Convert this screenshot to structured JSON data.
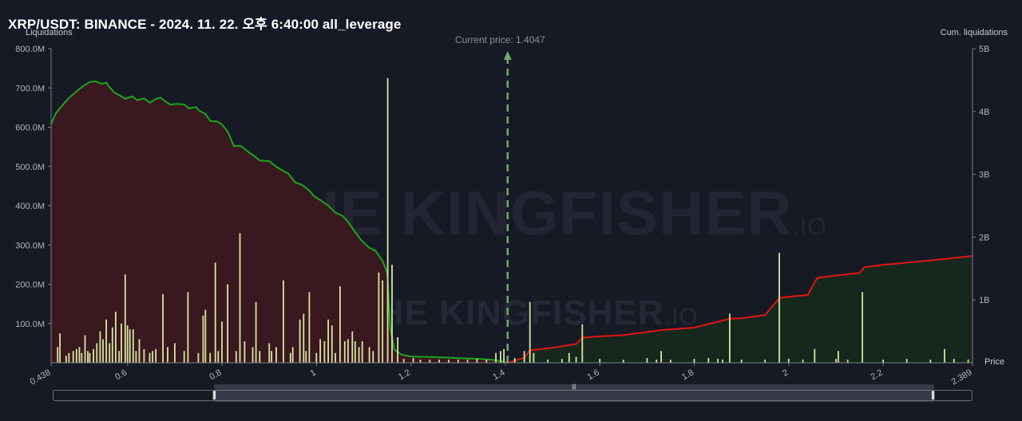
{
  "header": {
    "title": "XRP/USDT: BINANCE - 2024. 11. 22. 오후 6:40:00 all_leverage",
    "left_axis_title": "Liquidations",
    "right_axis_title": "Cum. liquidations",
    "price_axis_title": "Price",
    "current_price_label": "Current price: 1.4047"
  },
  "watermark": {
    "text": "THE KINGFISHER",
    "suffix": ".IO"
  },
  "colors": {
    "background": "#161a25",
    "bar": "#d6e6a0",
    "long_cum_line": "#1aa61a",
    "long_cum_fill": "#3a1820",
    "short_cum_line": "#e01515",
    "short_cum_fill": "#16281e",
    "current_price_line": "#6fa86f"
  },
  "scrollbar": {
    "grip_symbol": "|||"
  },
  "chart_data": {
    "type": "bar",
    "title": "XRP/USDT: BINANCE - 2024. 11. 22. 오후 6:40:00 all_leverage",
    "xlabel": "Price",
    "ylabel": "Liquidations",
    "y2label": "Cum. liquidations",
    "xlim": [
      0.438,
      2.389
    ],
    "ylim": [
      0,
      800000000
    ],
    "y2lim": [
      0,
      5000000000
    ],
    "x_ticks": [
      {
        "v": 0.438,
        "label": "0.438"
      },
      {
        "v": 0.6,
        "label": "0.6"
      },
      {
        "v": 0.8,
        "label": "0.8"
      },
      {
        "v": 1.0,
        "label": "1"
      },
      {
        "v": 1.2,
        "label": "1.2"
      },
      {
        "v": 1.4,
        "label": "1.4"
      },
      {
        "v": 1.6,
        "label": "1.6"
      },
      {
        "v": 1.8,
        "label": "1.8"
      },
      {
        "v": 2.0,
        "label": "2"
      },
      {
        "v": 2.2,
        "label": "2.2"
      },
      {
        "v": 2.389,
        "label": "2.389"
      }
    ],
    "y_ticks": [
      {
        "v": 100000000,
        "label": "100.0M"
      },
      {
        "v": 200000000,
        "label": "200.0M"
      },
      {
        "v": 300000000,
        "label": "300.0M"
      },
      {
        "v": 400000000,
        "label": "400.0M"
      },
      {
        "v": 500000000,
        "label": "500.0M"
      },
      {
        "v": 600000000,
        "label": "600.0M"
      },
      {
        "v": 700000000,
        "label": "700.0M"
      },
      {
        "v": 800000000,
        "label": "800.0M"
      }
    ],
    "y2_ticks": [
      {
        "v": 1000000000,
        "label": "1B"
      },
      {
        "v": 2000000000,
        "label": "2B"
      },
      {
        "v": 3000000000,
        "label": "3B"
      },
      {
        "v": 4000000000,
        "label": "4B"
      },
      {
        "v": 5000000000,
        "label": "5B"
      }
    ],
    "current_price": 1.4047,
    "bars": [
      [
        0.452,
        40
      ],
      [
        0.457,
        75
      ],
      [
        0.47,
        18
      ],
      [
        0.476,
        25
      ],
      [
        0.485,
        30
      ],
      [
        0.492,
        35
      ],
      [
        0.498,
        40
      ],
      [
        0.503,
        25
      ],
      [
        0.51,
        70
      ],
      [
        0.516,
        30
      ],
      [
        0.52,
        25
      ],
      [
        0.528,
        35
      ],
      [
        0.535,
        50
      ],
      [
        0.542,
        80
      ],
      [
        0.548,
        60
      ],
      [
        0.555,
        110
      ],
      [
        0.562,
        50
      ],
      [
        0.568,
        90
      ],
      [
        0.575,
        130
      ],
      [
        0.582,
        30
      ],
      [
        0.587,
        100
      ],
      [
        0.595,
        225
      ],
      [
        0.6,
        95
      ],
      [
        0.605,
        85
      ],
      [
        0.612,
        85
      ],
      [
        0.618,
        30
      ],
      [
        0.625,
        60
      ],
      [
        0.635,
        35
      ],
      [
        0.647,
        25
      ],
      [
        0.653,
        30
      ],
      [
        0.66,
        35
      ],
      [
        0.675,
        175
      ],
      [
        0.685,
        40
      ],
      [
        0.7,
        50
      ],
      [
        0.72,
        30
      ],
      [
        0.728,
        180
      ],
      [
        0.75,
        25
      ],
      [
        0.76,
        120
      ],
      [
        0.765,
        135
      ],
      [
        0.775,
        25
      ],
      [
        0.786,
        255
      ],
      [
        0.792,
        30
      ],
      [
        0.8,
        105
      ],
      [
        0.812,
        200
      ],
      [
        0.83,
        30
      ],
      [
        0.838,
        330
      ],
      [
        0.848,
        55
      ],
      [
        0.865,
        40
      ],
      [
        0.872,
        155
      ],
      [
        0.88,
        30
      ],
      [
        0.9,
        50
      ],
      [
        0.905,
        30
      ],
      [
        0.915,
        40
      ],
      [
        0.93,
        210
      ],
      [
        0.945,
        25
      ],
      [
        0.95,
        40
      ],
      [
        0.965,
        110
      ],
      [
        0.973,
        125
      ],
      [
        0.978,
        30
      ],
      [
        0.985,
        180
      ],
      [
        1.0,
        25
      ],
      [
        1.008,
        60
      ],
      [
        1.017,
        55
      ],
      [
        1.025,
        110
      ],
      [
        1.033,
        95
      ],
      [
        1.04,
        25
      ],
      [
        1.05,
        195
      ],
      [
        1.06,
        55
      ],
      [
        1.067,
        60
      ],
      [
        1.076,
        80
      ],
      [
        1.082,
        55
      ],
      [
        1.09,
        40
      ],
      [
        1.097,
        55
      ],
      [
        1.112,
        40
      ],
      [
        1.12,
        30
      ],
      [
        1.132,
        230
      ],
      [
        1.14,
        210
      ],
      [
        1.151,
        725
      ],
      [
        1.16,
        250
      ],
      [
        1.172,
        65
      ],
      [
        1.185,
        10
      ],
      [
        1.205,
        12
      ],
      [
        1.22,
        8
      ],
      [
        1.24,
        8
      ],
      [
        1.26,
        8
      ],
      [
        1.28,
        8
      ],
      [
        1.3,
        8
      ],
      [
        1.32,
        8
      ],
      [
        1.34,
        10
      ],
      [
        1.36,
        8
      ],
      [
        1.38,
        25
      ],
      [
        1.39,
        30
      ],
      [
        1.397,
        35
      ],
      [
        1.42,
        12
      ],
      [
        1.44,
        30
      ],
      [
        1.452,
        155
      ],
      [
        1.46,
        25
      ],
      [
        1.49,
        8
      ],
      [
        1.52,
        10
      ],
      [
        1.535,
        25
      ],
      [
        1.55,
        15
      ],
      [
        1.563,
        98
      ],
      [
        1.6,
        10
      ],
      [
        1.65,
        8
      ],
      [
        1.7,
        12
      ],
      [
        1.72,
        8
      ],
      [
        1.73,
        30
      ],
      [
        1.75,
        8
      ],
      [
        1.8,
        10
      ],
      [
        1.83,
        12
      ],
      [
        1.85,
        10
      ],
      [
        1.86,
        8
      ],
      [
        1.875,
        125
      ],
      [
        1.9,
        8
      ],
      [
        1.95,
        8
      ],
      [
        1.98,
        280
      ],
      [
        2.0,
        10
      ],
      [
        2.03,
        8
      ],
      [
        2.055,
        35
      ],
      [
        2.1,
        10
      ],
      [
        2.105,
        30
      ],
      [
        2.125,
        8
      ],
      [
        2.156,
        180
      ],
      [
        2.2,
        8
      ],
      [
        2.25,
        10
      ],
      [
        2.3,
        8
      ],
      [
        2.33,
        35
      ],
      [
        2.35,
        10
      ],
      [
        2.38,
        8
      ]
    ],
    "long_cumulative": [
      [
        0.438,
        3800
      ],
      [
        0.448,
        3970
      ],
      [
        0.46,
        4080
      ],
      [
        0.475,
        4210
      ],
      [
        0.49,
        4310
      ],
      [
        0.505,
        4400
      ],
      [
        0.52,
        4470
      ],
      [
        0.532,
        4480
      ],
      [
        0.545,
        4440
      ],
      [
        0.555,
        4460
      ],
      [
        0.56,
        4400
      ],
      [
        0.572,
        4300
      ],
      [
        0.585,
        4250
      ],
      [
        0.595,
        4200
      ],
      [
        0.61,
        4240
      ],
      [
        0.62,
        4180
      ],
      [
        0.635,
        4210
      ],
      [
        0.647,
        4140
      ],
      [
        0.66,
        4200
      ],
      [
        0.67,
        4220
      ],
      [
        0.678,
        4170
      ],
      [
        0.69,
        4110
      ],
      [
        0.705,
        4120
      ],
      [
        0.72,
        4110
      ],
      [
        0.73,
        4050
      ],
      [
        0.745,
        4070
      ],
      [
        0.752,
        4010
      ],
      [
        0.765,
        3960
      ],
      [
        0.775,
        3850
      ],
      [
        0.79,
        3840
      ],
      [
        0.8,
        3790
      ],
      [
        0.812,
        3680
      ],
      [
        0.825,
        3450
      ],
      [
        0.84,
        3450
      ],
      [
        0.855,
        3360
      ],
      [
        0.87,
        3280
      ],
      [
        0.88,
        3220
      ],
      [
        0.9,
        3210
      ],
      [
        0.913,
        3130
      ],
      [
        0.93,
        3050
      ],
      [
        0.94,
        3010
      ],
      [
        0.955,
        2870
      ],
      [
        0.97,
        2830
      ],
      [
        0.985,
        2740
      ],
      [
        0.995,
        2650
      ],
      [
        1.01,
        2580
      ],
      [
        1.025,
        2500
      ],
      [
        1.04,
        2390
      ],
      [
        1.055,
        2340
      ],
      [
        1.065,
        2260
      ],
      [
        1.08,
        2100
      ],
      [
        1.095,
        1950
      ],
      [
        1.11,
        1840
      ],
      [
        1.125,
        1780
      ],
      [
        1.14,
        1620
      ],
      [
        1.15,
        1430
      ],
      [
        1.156,
        560
      ],
      [
        1.165,
        210
      ],
      [
        1.18,
        130
      ],
      [
        1.2,
        100
      ],
      [
        1.25,
        90
      ],
      [
        1.3,
        75
      ],
      [
        1.35,
        60
      ],
      [
        1.38,
        40
      ],
      [
        1.4047,
        0
      ]
    ],
    "short_cumulative": [
      [
        1.4047,
        0
      ],
      [
        1.44,
        80
      ],
      [
        1.452,
        200
      ],
      [
        1.5,
        240
      ],
      [
        1.55,
        300
      ],
      [
        1.563,
        400
      ],
      [
        1.6,
        420
      ],
      [
        1.65,
        440
      ],
      [
        1.7,
        490
      ],
      [
        1.73,
        520
      ],
      [
        1.8,
        560
      ],
      [
        1.875,
        700
      ],
      [
        1.9,
        710
      ],
      [
        1.95,
        760
      ],
      [
        1.98,
        1030
      ],
      [
        2.0,
        1050
      ],
      [
        2.04,
        1080
      ],
      [
        2.06,
        1350
      ],
      [
        2.1,
        1390
      ],
      [
        2.15,
        1430
      ],
      [
        2.16,
        1520
      ],
      [
        2.2,
        1560
      ],
      [
        2.3,
        1630
      ],
      [
        2.389,
        1700
      ]
    ]
  }
}
